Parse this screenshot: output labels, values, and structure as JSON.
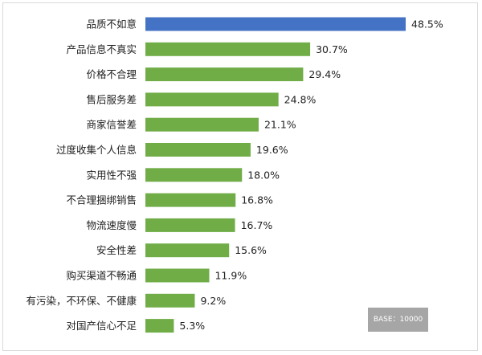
{
  "chart_data": {
    "type": "bar",
    "orientation": "horizontal",
    "categories": [
      "品质不如意",
      "产品信息不真实",
      "价格不合理",
      "售后服务差",
      "商家信誉差",
      "过度收集个人信息",
      "实用性不强",
      "不合理捆绑销售",
      "物流速度慢",
      "安全性差",
      "购买渠道不畅通",
      "有污染，不环保、不健康",
      "对国产信心不足"
    ],
    "values": [
      48.5,
      30.7,
      29.4,
      24.8,
      21.1,
      19.6,
      18.0,
      16.8,
      16.7,
      15.6,
      11.9,
      9.2,
      5.3
    ],
    "value_labels": [
      "48.5%",
      "30.7%",
      "29.4%",
      "24.8%",
      "21.1%",
      "19.6%",
      "18.0%",
      "16.8%",
      "16.7%",
      "15.6%",
      "11.9%",
      "9.2%",
      "5.3%"
    ],
    "highlight_color": "#4472C4",
    "bar_color": "#70AD47",
    "xlim": [
      0,
      50
    ],
    "grid": false
  },
  "base_note": "BASE：10000"
}
